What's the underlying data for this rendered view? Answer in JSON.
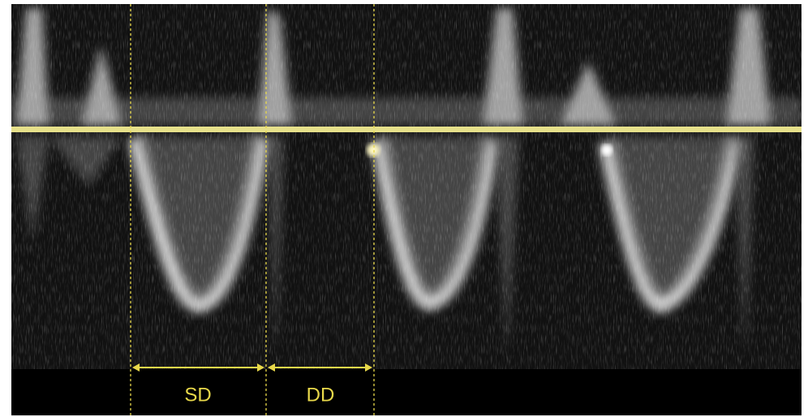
{
  "annotations": {
    "sd": "SD",
    "dd": "DD"
  }
}
